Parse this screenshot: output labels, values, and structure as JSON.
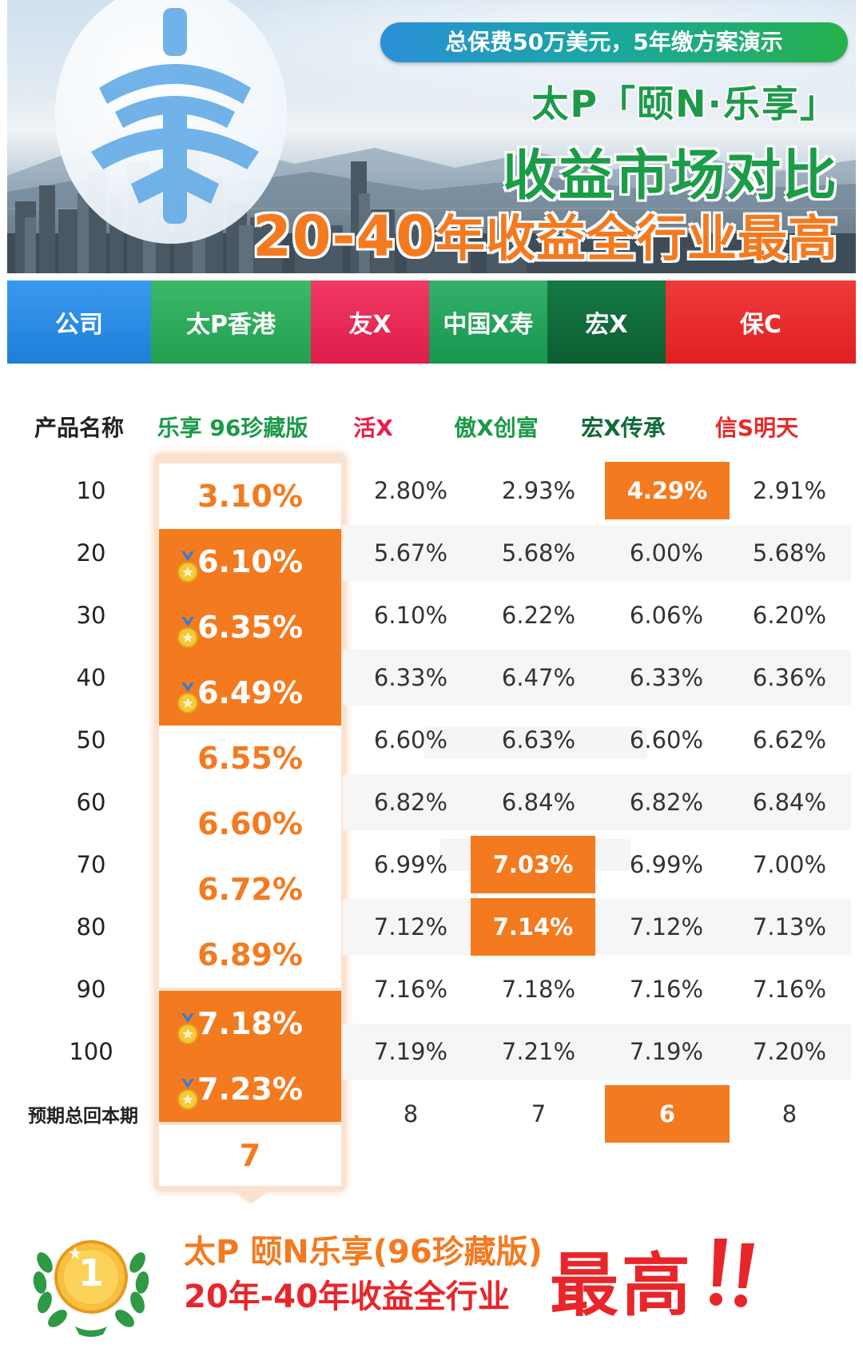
{
  "banner": {
    "logo_char": "泰",
    "pill_text": "总保费50万美元，5年缴方案演示",
    "title_line1": "太P「颐N·乐享」",
    "title_line2": "收益市场对比",
    "title_line3_num": "20-40",
    "title_line3_text": "年收益全行业最高"
  },
  "companies": {
    "label": "公司",
    "items": [
      {
        "name": "太P香港",
        "color": "#2aa655"
      },
      {
        "name": "友X",
        "color": "#e81e4e"
      },
      {
        "name": "中国X寿",
        "color": "#1aa05a"
      },
      {
        "name": "宏X",
        "color": "#0f6b3a"
      },
      {
        "name": "保C",
        "color": "#e62a2a"
      }
    ],
    "label_color": "#1e88e5"
  },
  "products": {
    "label": "产品名称",
    "items": [
      {
        "name": "乐享 96珍藏版",
        "color": "#1b9a48"
      },
      {
        "name": "活X",
        "color": "#e81e4e"
      },
      {
        "name": "傲X创富",
        "color": "#1b9a48"
      },
      {
        "name": "宏X传承",
        "color": "#0f6b3a"
      },
      {
        "name": "信S明天",
        "color": "#e62a2a"
      }
    ]
  },
  "table": {
    "rows": [
      {
        "year": "10",
        "values": [
          "3.10%",
          "2.80%",
          "2.93%",
          "4.29%",
          "2.91%"
        ]
      },
      {
        "year": "20",
        "values": [
          "6.10%",
          "5.67%",
          "5.68%",
          "6.00%",
          "5.68%"
        ]
      },
      {
        "year": "30",
        "values": [
          "6.35%",
          "6.10%",
          "6.22%",
          "6.06%",
          "6.20%"
        ]
      },
      {
        "year": "40",
        "values": [
          "6.49%",
          "6.33%",
          "6.47%",
          "6.33%",
          "6.36%"
        ]
      },
      {
        "year": "50",
        "values": [
          "6.55%",
          "6.60%",
          "6.63%",
          "6.60%",
          "6.62%"
        ]
      },
      {
        "year": "60",
        "values": [
          "6.60%",
          "6.82%",
          "6.84%",
          "6.82%",
          "6.84%"
        ]
      },
      {
        "year": "70",
        "values": [
          "6.72%",
          "6.99%",
          "7.03%",
          "6.99%",
          "7.00%"
        ]
      },
      {
        "year": "80",
        "values": [
          "6.89%",
          "7.12%",
          "7.14%",
          "7.12%",
          "7.13%"
        ]
      },
      {
        "year": "90",
        "values": [
          "7.18%",
          "7.16%",
          "7.18%",
          "7.16%",
          "7.16%"
        ]
      },
      {
        "year": "100",
        "values": [
          "7.23%",
          "7.19%",
          "7.21%",
          "7.19%",
          "7.20%"
        ]
      }
    ],
    "payback": {
      "label": "预期总回本期",
      "values": [
        "7",
        "8",
        "7",
        "6",
        "8"
      ]
    }
  },
  "footer": {
    "badge_number": "1",
    "line1": "太P 颐N乐享(96珍藏版)",
    "line2": "20年-40年收益全行业",
    "big": "最高"
  },
  "colors": {
    "accent_orange": "#f47a20",
    "highlight_bg": "#fbe2cf",
    "red": "#e8262a",
    "green": "#1b9a48"
  }
}
